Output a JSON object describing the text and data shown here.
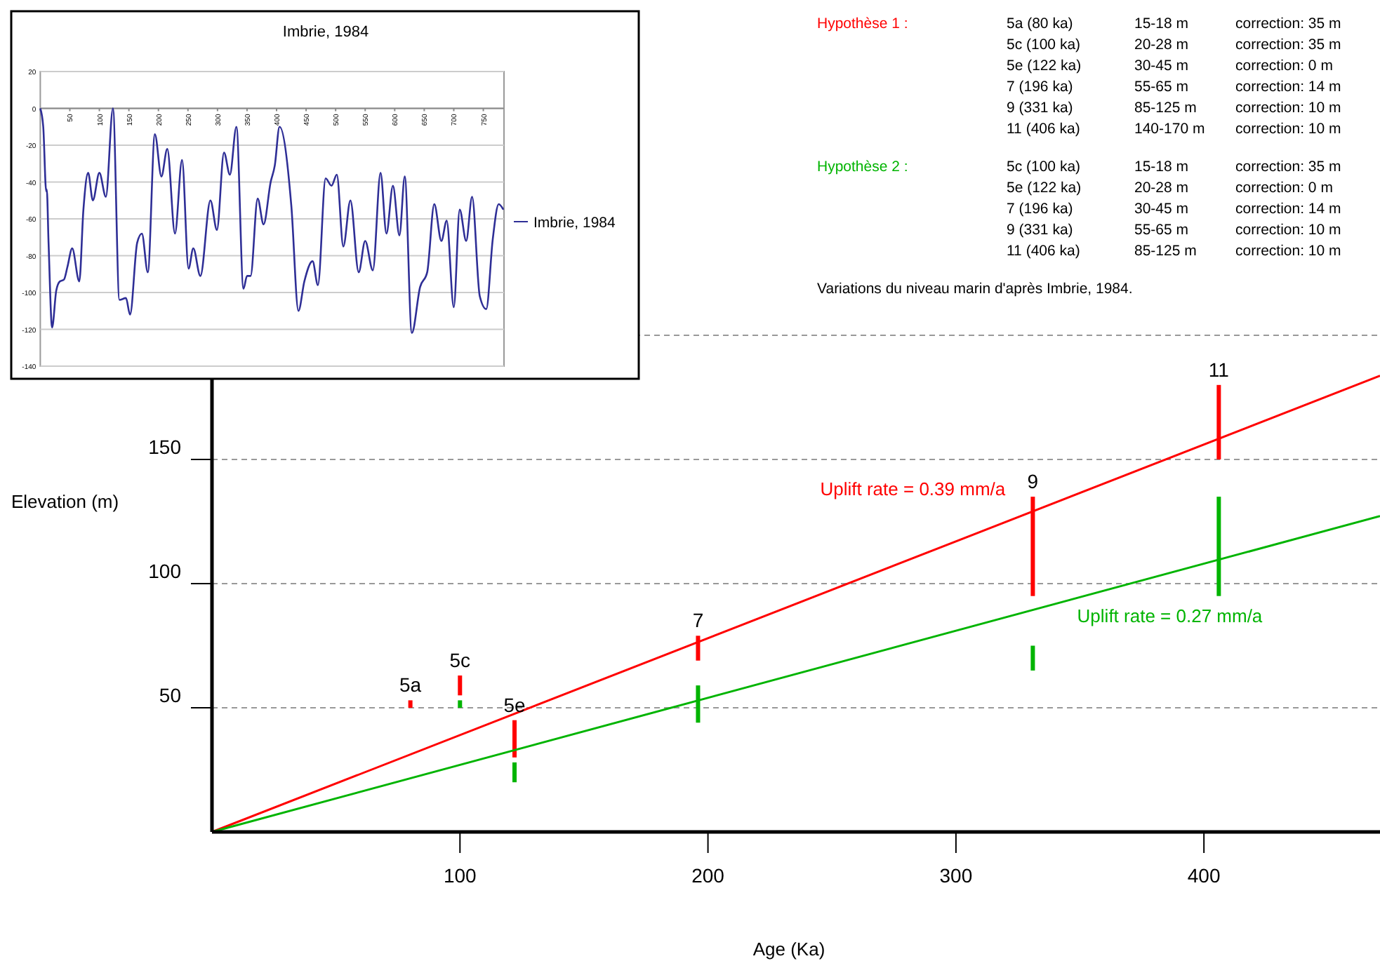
{
  "chart_data": [
    {
      "type": "bar",
      "xlabel": "Age (Ka)",
      "ylabel": "Elevation (m)",
      "xlim": [
        0,
        471
      ],
      "xticks": [
        100,
        200,
        300,
        400
      ],
      "ylim": [
        0,
        200
      ],
      "yticks": [
        50,
        100,
        150,
        {
          "value": 200,
          "label": null
        }
      ],
      "grid": "y",
      "series": [
        {
          "type": "bar",
          "color": "#ff0000",
          "x": [
            80,
            100,
            122,
            196,
            331,
            406
          ],
          "base": [
            50,
            55,
            30,
            69,
            95,
            150
          ],
          "values": [
            3,
            8,
            15,
            10,
            40,
            30
          ]
        },
        {
          "type": "bar",
          "color": "#00b400",
          "x": [
            100,
            122,
            196,
            331,
            406
          ],
          "base": [
            50,
            20,
            44,
            65,
            95
          ],
          "values": [
            3,
            8,
            15,
            10,
            40
          ]
        },
        {
          "type": "line",
          "name": "Uplift rate = 0.39 mm/a",
          "color": "#ff0000",
          "x": [
            0,
            471
          ],
          "values": [
            0,
            183.7
          ]
        },
        {
          "type": "line",
          "name": "Uplift rate = 0.27 mm/a",
          "color": "#00b400",
          "x": [
            0,
            471
          ],
          "values": [
            0,
            127.2
          ]
        }
      ],
      "annotations": [
        {
          "text": "5a",
          "x": 80,
          "y": 53
        },
        {
          "text": "5c",
          "x": 100,
          "y": 63
        },
        {
          "text": "5e",
          "x": 122,
          "y": 45
        },
        {
          "text": "7",
          "x": 196,
          "y": 79
        },
        {
          "text": "9",
          "x": 331,
          "y": 135
        },
        {
          "text": "11",
          "x": 406,
          "y": 180
        }
      ]
    },
    {
      "type": "line",
      "title": "Imbrie, 1984",
      "xlim": [
        0,
        785
      ],
      "xticks": [
        {
          "value": 0,
          "label": null
        },
        50,
        100,
        150,
        200,
        250,
        300,
        350,
        400,
        450,
        500,
        550,
        600,
        650,
        700,
        750
      ],
      "ylim": [
        -140,
        20
      ],
      "yticks": [
        -140,
        -120,
        -100,
        -80,
        -60,
        -40,
        -20,
        0,
        20
      ],
      "grid": "y",
      "legend": "right",
      "x": [
        0,
        5,
        10,
        11,
        14,
        20,
        27,
        33,
        40,
        46,
        54,
        66,
        73,
        81,
        89,
        100,
        111,
        123,
        134,
        145,
        152,
        164,
        172,
        182,
        194,
        205,
        215,
        228,
        240,
        251,
        259,
        271,
        288,
        299,
        311,
        321,
        332,
        344,
        350,
        356,
        368,
        378,
        390,
        397,
        405,
        425,
        437,
        447,
        461,
        470,
        483,
        493,
        502,
        513,
        525,
        539,
        550,
        563,
        576,
        586,
        597,
        608,
        617,
        629,
        643,
        655,
        667,
        679,
        688,
        700,
        710,
        721,
        731,
        744,
        755,
        766,
        776,
        784
      ],
      "series": [
        {
          "name": "Imbrie, 1984",
          "color": "#2e2e96",
          "values": [
            0,
            -10,
            -45,
            -44,
            -73,
            -119,
            -99,
            -94,
            -93,
            -86,
            -76,
            -94,
            -55,
            -35,
            -50,
            -35,
            -48,
            0,
            -104,
            -103,
            -112,
            -73,
            -68,
            -89,
            -14,
            -37,
            -22,
            -68,
            -28,
            -87,
            -76,
            -91,
            -50,
            -66,
            -24,
            -36,
            -10,
            -98,
            -91,
            -91,
            -49,
            -63,
            -40,
            -31,
            -10,
            -53,
            -110,
            -94,
            -83,
            -96,
            -38,
            -42,
            -36,
            -75,
            -50,
            -89,
            -72,
            -88,
            -35,
            -68,
            -42,
            -69,
            -37,
            -122,
            -97,
            -89,
            -52,
            -72,
            -61,
            -108,
            -55,
            -72,
            -48,
            -102,
            -109,
            -71,
            -52,
            -55
          ]
        }
      ]
    },
    {
      "type": "other",
      "annotations": [
        "Hypothèse 1 :\t5a (80 ka)\t15-18 m\tcorrection: 35 m",
        "\t5c (100 ka)\t20-28 m\tcorrection: 35 m",
        "\t5e (122 ka)\t30-45 m\tcorrection: 0 m",
        "\t7 (196 ka)\t55-65 m\tcorrection: 14 m",
        "\t9 (331 ka)\t85-125 m\tcorrection: 10 m",
        "\t11 (406 ka)\t140-170 m\tcorrection: 10 m",
        "Hypothèse 2 :\t5c (100 ka)\t15-18 m\tcorrection: 35 m",
        "\t5e (122 ka)\t20-28 m\tcorrection: 0 m",
        "\t7 (196 ka)\t30-45 m\tcorrection: 14 m",
        "\t9 (331 ka)\t55-65 m\tcorrection: 10 m",
        "\t11 (406 ka)\t85-125 m\tcorrection: 10 m",
        "Variations du niveau marin d'après Imbrie, 1984."
      ]
    }
  ]
}
